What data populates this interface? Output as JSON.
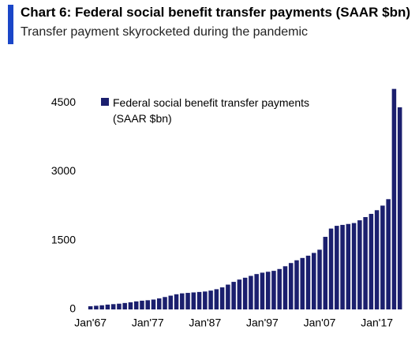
{
  "chart_data": {
    "type": "bar",
    "title": "Chart 6: Federal social benefit transfer payments (SAAR $bn)",
    "subtitle": "Transfer payment skyrocketed during the pandemic",
    "categories": [
      "Jan'67",
      null,
      null,
      null,
      null,
      null,
      null,
      null,
      null,
      null,
      "Jan'77",
      null,
      null,
      null,
      null,
      null,
      null,
      null,
      null,
      null,
      "Jan'87",
      null,
      null,
      null,
      null,
      null,
      null,
      null,
      null,
      null,
      "Jan'97",
      null,
      null,
      null,
      null,
      null,
      null,
      null,
      null,
      null,
      "Jan'07",
      null,
      null,
      null,
      null,
      null,
      null,
      null,
      null,
      null,
      "Jan'17",
      null,
      null,
      null,
      null
    ],
    "series": [
      {
        "name": "Federal social benefit transfer payments (SAAR $bn)",
        "color": "#1b1f6e",
        "values": [
          70,
          80,
          90,
          105,
          115,
          125,
          140,
          155,
          175,
          190,
          200,
          215,
          240,
          270,
          300,
          330,
          350,
          360,
          370,
          380,
          390,
          410,
          440,
          480,
          540,
          600,
          650,
          690,
          730,
          770,
          800,
          820,
          840,
          880,
          940,
          1010,
          1070,
          1120,
          1170,
          1230,
          1300,
          1580,
          1760,
          1820,
          1840,
          1860,
          1880,
          1940,
          2010,
          2080,
          2160,
          2260,
          2400,
          4800,
          4400
        ]
      }
    ],
    "ylim": [
      0,
      5000
    ],
    "yticks": [
      0,
      1500,
      3000,
      4500
    ]
  }
}
